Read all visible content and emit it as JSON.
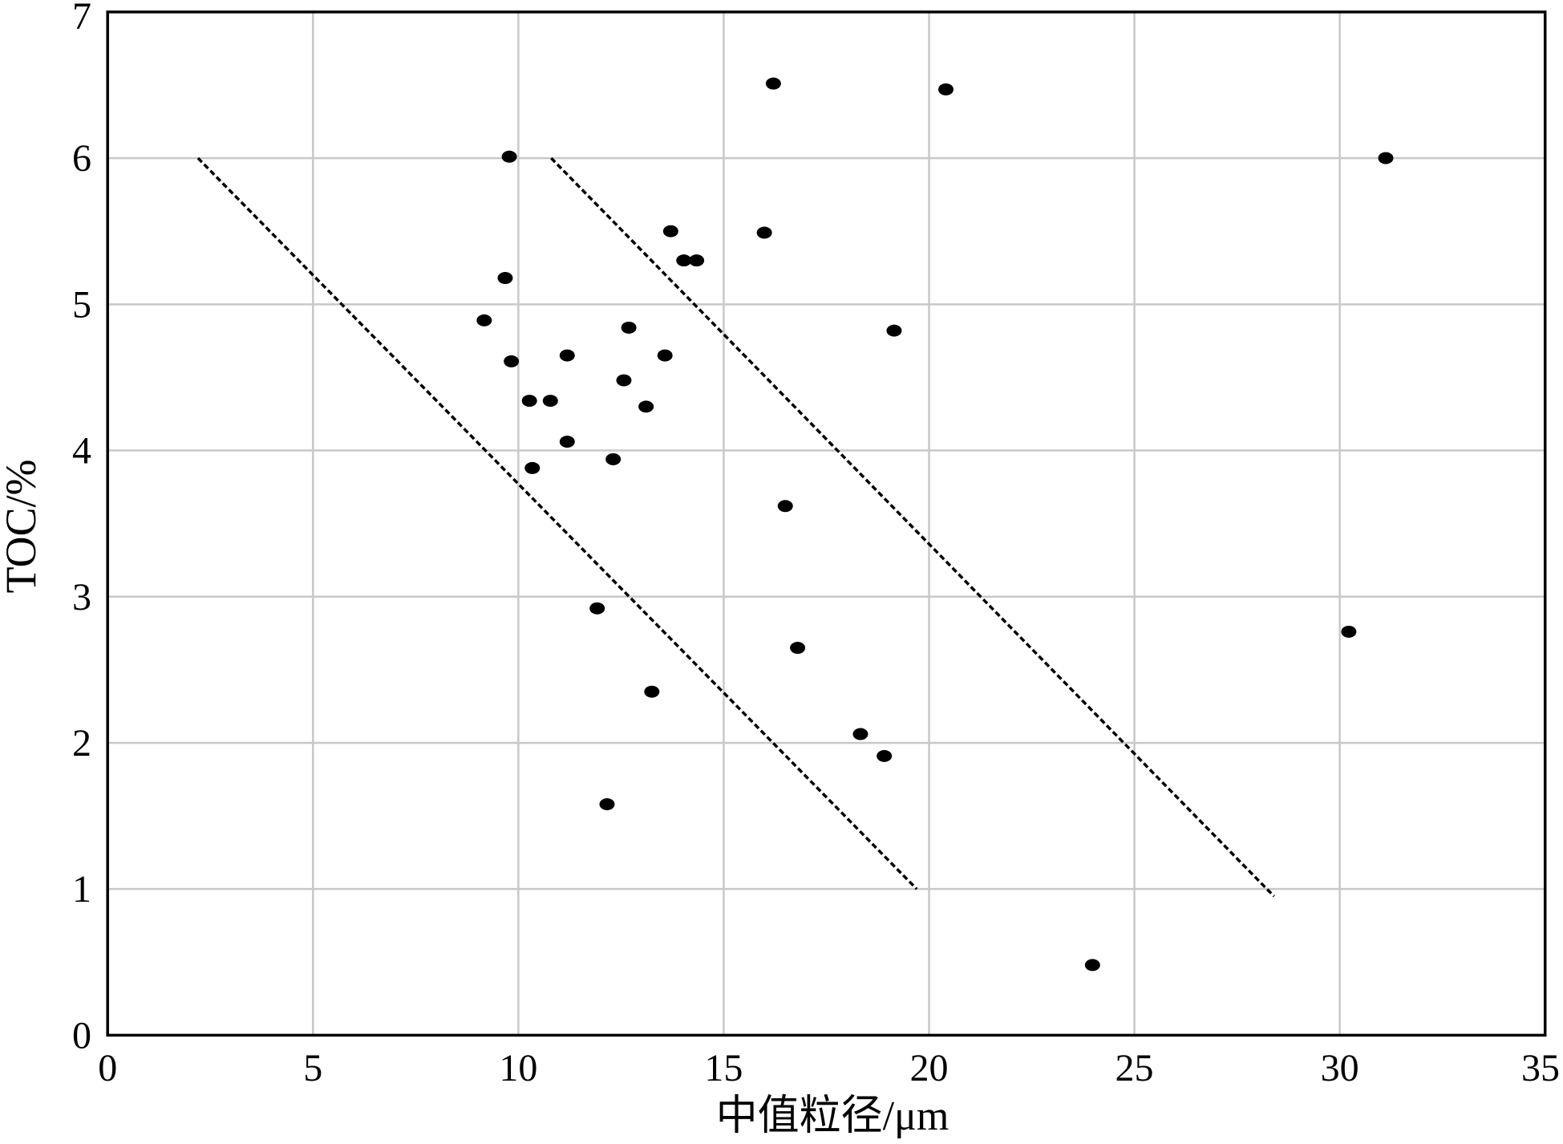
{
  "chart_data": {
    "type": "scatter",
    "xlabel": "中值粒径/μm",
    "ylabel": "TOC/%",
    "xlim": [
      0,
      35
    ],
    "ylim": [
      0,
      7
    ],
    "xticks": [
      0,
      5,
      10,
      15,
      20,
      25,
      30,
      35
    ],
    "yticks": [
      0,
      1,
      2,
      3,
      4,
      5,
      6,
      7
    ],
    "grid": true,
    "points": [
      {
        "x": 16.21,
        "y": 6.51
      },
      {
        "x": 20.41,
        "y": 6.47
      },
      {
        "x": 31.12,
        "y": 6.0
      },
      {
        "x": 9.78,
        "y": 6.01
      },
      {
        "x": 13.71,
        "y": 5.5
      },
      {
        "x": 15.99,
        "y": 5.49
      },
      {
        "x": 14.03,
        "y": 5.3
      },
      {
        "x": 14.34,
        "y": 5.3
      },
      {
        "x": 9.68,
        "y": 5.18
      },
      {
        "x": 9.17,
        "y": 4.89
      },
      {
        "x": 19.15,
        "y": 4.82
      },
      {
        "x": 12.69,
        "y": 4.84
      },
      {
        "x": 11.19,
        "y": 4.65
      },
      {
        "x": 13.57,
        "y": 4.65
      },
      {
        "x": 9.83,
        "y": 4.61
      },
      {
        "x": 12.57,
        "y": 4.48
      },
      {
        "x": 10.27,
        "y": 4.34
      },
      {
        "x": 10.78,
        "y": 4.34
      },
      {
        "x": 13.11,
        "y": 4.3
      },
      {
        "x": 11.19,
        "y": 4.06
      },
      {
        "x": 12.31,
        "y": 3.94
      },
      {
        "x": 10.34,
        "y": 3.88
      },
      {
        "x": 16.5,
        "y": 3.62
      },
      {
        "x": 11.92,
        "y": 2.92
      },
      {
        "x": 30.22,
        "y": 2.76
      },
      {
        "x": 16.8,
        "y": 2.65
      },
      {
        "x": 13.25,
        "y": 2.35
      },
      {
        "x": 18.33,
        "y": 2.06
      },
      {
        "x": 18.91,
        "y": 1.91
      },
      {
        "x": 12.16,
        "y": 1.58
      },
      {
        "x": 23.98,
        "y": 0.48
      }
    ],
    "lines": [
      {
        "x": [
          2.2,
          19.7
        ],
        "y": [
          6.0,
          1.0
        ],
        "style": "dashed"
      },
      {
        "x": [
          10.8,
          28.4
        ],
        "y": [
          6.0,
          0.95
        ],
        "style": "dashed"
      }
    ]
  },
  "colors": {
    "points": "#000000",
    "grid": "#c8c8c8",
    "axes": "#000000",
    "lines": "#000000"
  }
}
